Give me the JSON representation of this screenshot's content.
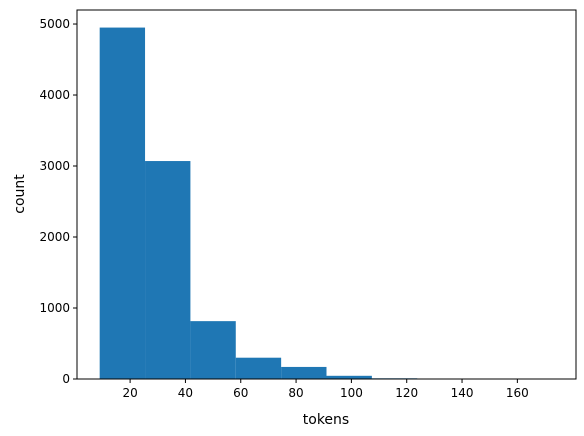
{
  "chart_data": {
    "type": "histogram",
    "x_label": "tokens",
    "y_label": "count",
    "bins": [
      9,
      25.4,
      41.8,
      58.2,
      74.6,
      91,
      107.4,
      123.8,
      140.2,
      156.6,
      173
    ],
    "values": [
      4950,
      3070,
      815,
      300,
      170,
      45,
      10,
      5,
      3,
      2
    ],
    "color": "#1f77b4",
    "xlim": [
      0.8,
      181.2
    ],
    "xticks": [
      20,
      40,
      60,
      80,
      100,
      120,
      140,
      160
    ],
    "ylim": [
      0,
      5197.5
    ],
    "yticks": [
      0,
      1000,
      2000,
      3000,
      4000,
      5000
    ],
    "grid": false
  }
}
